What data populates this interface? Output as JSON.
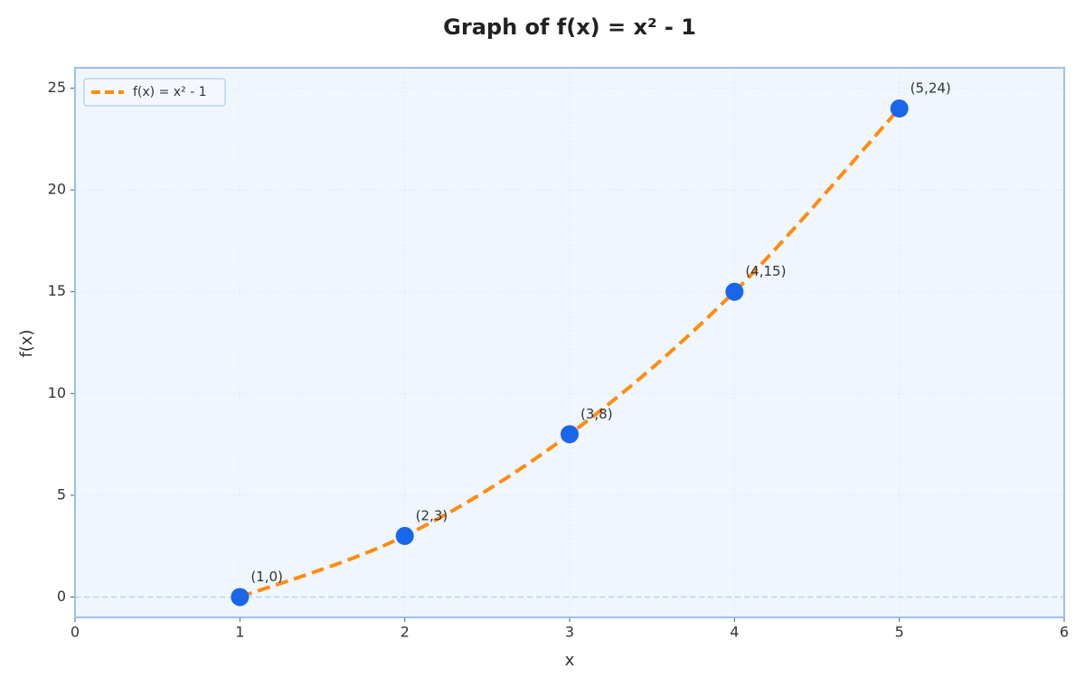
{
  "chart_data": {
    "type": "line",
    "title": "Graph of f(x) = x² - 1",
    "x_label": "x",
    "y_label": "f(x)",
    "x": [
      1,
      2,
      3,
      4,
      5
    ],
    "series": [
      {
        "name": "f(x) = x² - 1",
        "color": "#ff8c0f",
        "marker_color": "#1a66e8",
        "line_style": "dashed",
        "values": [
          0,
          3,
          8,
          15,
          24
        ],
        "value_labels": [
          "(1,0)",
          "(2,3)",
          "(3,8)",
          "(4,15)",
          "(5,24)"
        ]
      }
    ],
    "xlim": [
      0,
      6
    ],
    "xticks": [
      0,
      1,
      2,
      3,
      4,
      5,
      6
    ],
    "ylim": [
      -1,
      26
    ],
    "yticks": [
      0,
      5,
      10,
      15,
      20,
      25
    ],
    "hline": 0,
    "grid": true,
    "legend": "upper left"
  }
}
